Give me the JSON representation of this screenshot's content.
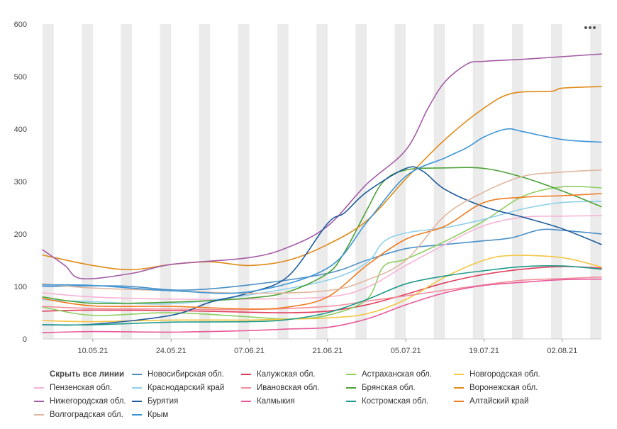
{
  "legend": {
    "hide_all": "Скрыть все линии"
  },
  "chart_data": {
    "type": "line",
    "x_type": "date",
    "x_start": "2021-05-01",
    "x_end": "2021-08-09",
    "xticks": [
      {
        "date": "2021-05-10",
        "label": "10.05.21"
      },
      {
        "date": "2021-05-24",
        "label": "24.05.21"
      },
      {
        "date": "2021-06-07",
        "label": "07.06.21"
      },
      {
        "date": "2021-06-21",
        "label": "21.06.21"
      },
      {
        "date": "2021-07-05",
        "label": "05.07.21"
      },
      {
        "date": "2021-07-19",
        "label": "19.07.21"
      },
      {
        "date": "2021-08-02",
        "label": "02.08.21"
      }
    ],
    "ylim": [
      0,
      600
    ],
    "yticks": [
      0,
      100,
      200,
      300,
      400,
      500,
      600
    ],
    "weekend_shading": true,
    "series": [
      {
        "name": "Новосибирская обл.",
        "color": "#4a90c8",
        "points": [
          [
            "2021-05-01",
            100
          ],
          [
            "2021-05-15",
            101
          ],
          [
            "2021-05-26",
            93
          ],
          [
            "2021-06-07",
            103
          ],
          [
            "2021-06-21",
            125
          ],
          [
            "2021-06-28",
            150
          ],
          [
            "2021-07-05",
            172
          ],
          [
            "2021-07-12",
            180
          ],
          [
            "2021-07-19",
            187
          ],
          [
            "2021-07-24",
            193
          ],
          [
            "2021-07-29",
            208
          ],
          [
            "2021-08-02",
            207
          ],
          [
            "2021-08-09",
            200
          ]
        ]
      },
      {
        "name": "Калужская обл.",
        "color": "#e03c5a",
        "points": [
          [
            "2021-05-01",
            53
          ],
          [
            "2021-05-10",
            55
          ],
          [
            "2021-05-24",
            54
          ],
          [
            "2021-06-07",
            51
          ],
          [
            "2021-06-14",
            50
          ],
          [
            "2021-06-21",
            53
          ],
          [
            "2021-06-28",
            65
          ],
          [
            "2021-07-05",
            85
          ],
          [
            "2021-07-12",
            107
          ],
          [
            "2021-07-19",
            123
          ],
          [
            "2021-07-26",
            133
          ],
          [
            "2021-08-02",
            138
          ],
          [
            "2021-08-09",
            135
          ]
        ]
      },
      {
        "name": "Астраханская обл.",
        "color": "#8ecf62",
        "points": [
          [
            "2021-05-01",
            61
          ],
          [
            "2021-05-10",
            45
          ],
          [
            "2021-05-24",
            50
          ],
          [
            "2021-06-07",
            42
          ],
          [
            "2021-06-14",
            38
          ],
          [
            "2021-06-21",
            45
          ],
          [
            "2021-06-28",
            75
          ],
          [
            "2021-07-01",
            138
          ],
          [
            "2021-07-05",
            152
          ],
          [
            "2021-07-12",
            186
          ],
          [
            "2021-07-19",
            225
          ],
          [
            "2021-07-26",
            272
          ],
          [
            "2021-08-02",
            290
          ],
          [
            "2021-08-09",
            288
          ]
        ]
      },
      {
        "name": "Новгородская обл.",
        "color": "#f5c542",
        "points": [
          [
            "2021-05-01",
            35
          ],
          [
            "2021-05-10",
            33
          ],
          [
            "2021-05-24",
            36
          ],
          [
            "2021-06-07",
            36
          ],
          [
            "2021-06-14",
            38
          ],
          [
            "2021-06-21",
            40
          ],
          [
            "2021-06-28",
            48
          ],
          [
            "2021-07-05",
            75
          ],
          [
            "2021-07-12",
            118
          ],
          [
            "2021-07-19",
            150
          ],
          [
            "2021-07-24",
            159
          ],
          [
            "2021-08-02",
            155
          ],
          [
            "2021-08-09",
            137
          ]
        ]
      },
      {
        "name": "Пензенская обл.",
        "color": "#f7b3d6",
        "points": [
          [
            "2021-05-01",
            88
          ],
          [
            "2021-05-10",
            80
          ],
          [
            "2021-05-24",
            76
          ],
          [
            "2021-06-07",
            76
          ],
          [
            "2021-06-21",
            80
          ],
          [
            "2021-06-28",
            98
          ],
          [
            "2021-07-05",
            140
          ],
          [
            "2021-07-12",
            180
          ],
          [
            "2021-07-19",
            216
          ],
          [
            "2021-07-26",
            232
          ],
          [
            "2021-08-02",
            234
          ],
          [
            "2021-08-09",
            235
          ]
        ]
      },
      {
        "name": "Краснодарский край",
        "color": "#8fd0ea",
        "points": [
          [
            "2021-05-01",
            75
          ],
          [
            "2021-05-10",
            71
          ],
          [
            "2021-05-24",
            67
          ],
          [
            "2021-06-07",
            84
          ],
          [
            "2021-06-21",
            112
          ],
          [
            "2021-06-28",
            145
          ],
          [
            "2021-07-01",
            185
          ],
          [
            "2021-07-05",
            202
          ],
          [
            "2021-07-12",
            212
          ],
          [
            "2021-07-19",
            228
          ],
          [
            "2021-07-26",
            248
          ],
          [
            "2021-08-02",
            260
          ],
          [
            "2021-08-09",
            262
          ]
        ]
      },
      {
        "name": "Ивановская обл.",
        "color": "#f28e9a",
        "points": [
          [
            "2021-05-01",
            62
          ],
          [
            "2021-05-10",
            58
          ],
          [
            "2021-05-24",
            57
          ],
          [
            "2021-06-07",
            56
          ],
          [
            "2021-06-21",
            62
          ],
          [
            "2021-06-28",
            72
          ],
          [
            "2021-07-05",
            82
          ],
          [
            "2021-07-12",
            93
          ],
          [
            "2021-07-19",
            103
          ],
          [
            "2021-07-26",
            112
          ],
          [
            "2021-08-02",
            115
          ],
          [
            "2021-08-09",
            118
          ]
        ]
      },
      {
        "name": "Брянская обл.",
        "color": "#4aa236",
        "points": [
          [
            "2021-05-01",
            80
          ],
          [
            "2021-05-10",
            68
          ],
          [
            "2021-05-24",
            70
          ],
          [
            "2021-06-07",
            78
          ],
          [
            "2021-06-14",
            90
          ],
          [
            "2021-06-21",
            125
          ],
          [
            "2021-06-24",
            165
          ],
          [
            "2021-06-28",
            245
          ],
          [
            "2021-07-01",
            300
          ],
          [
            "2021-07-05",
            322
          ],
          [
            "2021-07-12",
            326
          ],
          [
            "2021-07-19",
            325
          ],
          [
            "2021-07-26",
            308
          ],
          [
            "2021-08-02",
            282
          ],
          [
            "2021-08-09",
            252
          ]
        ]
      },
      {
        "name": "Воронежская обл.",
        "color": "#df8a17",
        "points": [
          [
            "2021-05-01",
            160
          ],
          [
            "2021-05-10",
            140
          ],
          [
            "2021-05-17",
            132
          ],
          [
            "2021-05-24",
            142
          ],
          [
            "2021-05-31",
            147
          ],
          [
            "2021-06-07",
            140
          ],
          [
            "2021-06-14",
            150
          ],
          [
            "2021-06-21",
            180
          ],
          [
            "2021-06-28",
            225
          ],
          [
            "2021-07-05",
            305
          ],
          [
            "2021-07-12",
            380
          ],
          [
            "2021-07-19",
            440
          ],
          [
            "2021-07-24",
            468
          ],
          [
            "2021-07-31",
            472
          ],
          [
            "2021-08-02",
            478
          ],
          [
            "2021-08-09",
            481
          ]
        ]
      },
      {
        "name": "Нижегородская обл.",
        "color": "#a45ca6",
        "points": [
          [
            "2021-05-01",
            170
          ],
          [
            "2021-05-05",
            140
          ],
          [
            "2021-05-08",
            115
          ],
          [
            "2021-05-17",
            125
          ],
          [
            "2021-05-24",
            142
          ],
          [
            "2021-06-07",
            155
          ],
          [
            "2021-06-14",
            175
          ],
          [
            "2021-06-21",
            215
          ],
          [
            "2021-06-28",
            295
          ],
          [
            "2021-07-05",
            360
          ],
          [
            "2021-07-09",
            440
          ],
          [
            "2021-07-12",
            490
          ],
          [
            "2021-07-16",
            524
          ],
          [
            "2021-07-19",
            529
          ],
          [
            "2021-07-26",
            533
          ],
          [
            "2021-08-02",
            538
          ],
          [
            "2021-08-09",
            543
          ]
        ]
      },
      {
        "name": "Бурятия",
        "color": "#1f5b9e",
        "points": [
          [
            "2021-05-01",
            27
          ],
          [
            "2021-05-10",
            28
          ],
          [
            "2021-05-24",
            45
          ],
          [
            "2021-05-31",
            70
          ],
          [
            "2021-06-07",
            88
          ],
          [
            "2021-06-14",
            120
          ],
          [
            "2021-06-21",
            220
          ],
          [
            "2021-06-24",
            240
          ],
          [
            "2021-06-28",
            280
          ],
          [
            "2021-07-05",
            325
          ],
          [
            "2021-07-08",
            320
          ],
          [
            "2021-07-12",
            285
          ],
          [
            "2021-07-19",
            252
          ],
          [
            "2021-07-26",
            232
          ],
          [
            "2021-08-02",
            210
          ],
          [
            "2021-08-09",
            180
          ]
        ]
      },
      {
        "name": "Калмыкия",
        "color": "#e85a9b",
        "points": [
          [
            "2021-05-01",
            12
          ],
          [
            "2021-05-10",
            14
          ],
          [
            "2021-05-24",
            13
          ],
          [
            "2021-06-07",
            16
          ],
          [
            "2021-06-14",
            19
          ],
          [
            "2021-06-21",
            22
          ],
          [
            "2021-06-28",
            38
          ],
          [
            "2021-07-05",
            65
          ],
          [
            "2021-07-12",
            88
          ],
          [
            "2021-07-19",
            102
          ],
          [
            "2021-07-26",
            108
          ],
          [
            "2021-08-02",
            113
          ],
          [
            "2021-08-09",
            114
          ]
        ]
      },
      {
        "name": "Костромская обл.",
        "color": "#1f9a8a",
        "points": [
          [
            "2021-05-01",
            27
          ],
          [
            "2021-05-10",
            27
          ],
          [
            "2021-05-24",
            32
          ],
          [
            "2021-06-07",
            33
          ],
          [
            "2021-06-14",
            37
          ],
          [
            "2021-06-21",
            50
          ],
          [
            "2021-06-28",
            75
          ],
          [
            "2021-07-05",
            105
          ],
          [
            "2021-07-12",
            120
          ],
          [
            "2021-07-19",
            130
          ],
          [
            "2021-07-26",
            138
          ],
          [
            "2021-08-02",
            139
          ],
          [
            "2021-08-09",
            133
          ]
        ]
      },
      {
        "name": "Алтайский край",
        "color": "#f07a1e",
        "points": [
          [
            "2021-05-01",
            77
          ],
          [
            "2021-05-10",
            63
          ],
          [
            "2021-05-24",
            62
          ],
          [
            "2021-06-07",
            57
          ],
          [
            "2021-06-14",
            61
          ],
          [
            "2021-06-21",
            80
          ],
          [
            "2021-06-28",
            140
          ],
          [
            "2021-07-05",
            190
          ],
          [
            "2021-07-12",
            215
          ],
          [
            "2021-07-19",
            260
          ],
          [
            "2021-07-26",
            270
          ],
          [
            "2021-08-02",
            273
          ],
          [
            "2021-08-09",
            277
          ]
        ]
      },
      {
        "name": "Волгоградская обл.",
        "color": "#e0b7a0",
        "points": [
          [
            "2021-05-01",
            105
          ],
          [
            "2021-05-10",
            97
          ],
          [
            "2021-05-24",
            92
          ],
          [
            "2021-06-07",
            87
          ],
          [
            "2021-06-21",
            92
          ],
          [
            "2021-06-28",
            112
          ],
          [
            "2021-07-05",
            150
          ],
          [
            "2021-07-12",
            235
          ],
          [
            "2021-07-19",
            280
          ],
          [
            "2021-07-26",
            310
          ],
          [
            "2021-08-02",
            318
          ],
          [
            "2021-08-09",
            322
          ]
        ]
      },
      {
        "name": "Крым",
        "color": "#3c95d6",
        "points": [
          [
            "2021-05-01",
            103
          ],
          [
            "2021-05-10",
            102
          ],
          [
            "2021-05-24",
            92
          ],
          [
            "2021-06-07",
            90
          ],
          [
            "2021-06-21",
            135
          ],
          [
            "2021-06-28",
            222
          ],
          [
            "2021-07-05",
            310
          ],
          [
            "2021-07-12",
            345
          ],
          [
            "2021-07-16",
            365
          ],
          [
            "2021-07-19",
            385
          ],
          [
            "2021-07-23",
            400
          ],
          [
            "2021-07-26",
            395
          ],
          [
            "2021-08-02",
            380
          ],
          [
            "2021-08-09",
            375
          ]
        ]
      }
    ]
  }
}
